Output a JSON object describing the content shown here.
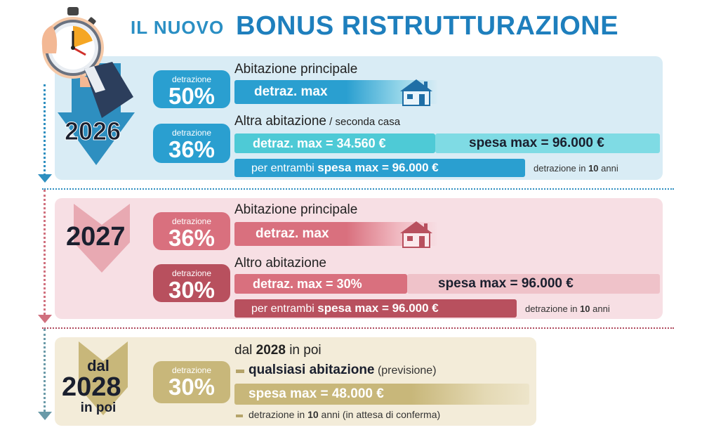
{
  "header": {
    "title_small": "IL NUOVO",
    "title_big": "BONUS RISTRUTTURAZIONE"
  },
  "colors": {
    "blue": "#2a9fd0",
    "teal": "#4ecad6",
    "pink": "#d9707e",
    "rose": "#b8505e",
    "gold": "#c8b77a",
    "title": "#1e7fbd"
  },
  "y2026": {
    "year": "2026",
    "main": {
      "badge_label": "detrazione",
      "badge_pct": "50%",
      "heading": "Abitazione principale",
      "bar": "detraz. max"
    },
    "second": {
      "badge_label": "detrazione",
      "badge_pct": "36%",
      "heading_a": "Altra abitazione",
      "heading_b": " / seconda casa",
      "bar": "detraz. max = 34.560 €",
      "spesa": "spesa max = 96.000 €"
    },
    "both": {
      "prefix": "per entrambi ",
      "bold": "spesa max = 96.000 €",
      "note_a": "detrazione in ",
      "note_num": "10",
      "note_b": " anni"
    }
  },
  "y2027": {
    "year": "2027",
    "main": {
      "badge_label": "detrazione",
      "badge_pct": "36%",
      "heading": "Abitazione principale",
      "bar": "detraz. max"
    },
    "second": {
      "badge_label": "detrazione",
      "badge_pct": "30%",
      "heading": "Altro abitazione",
      "bar": "detraz. max = 30%",
      "spesa": "spesa max = 96.000 €"
    },
    "both": {
      "prefix": "per entrambi ",
      "bold": "spesa max = 96.000 €",
      "note_a": "detrazione in ",
      "note_num": "10",
      "note_b": " anni"
    }
  },
  "y2028": {
    "year_top": "dal",
    "year": "2028",
    "year_bottom": "in poi",
    "badge_label": "detrazione",
    "badge_pct": "30%",
    "heading_a": "dal ",
    "heading_num": "2028",
    "heading_b": " in poi",
    "line1_bold": "qualsiasi abitazione",
    "line1_rest": " (previsione)",
    "bar": "spesa max = 48.000 €",
    "note_a": "detrazione in ",
    "note_num": "10",
    "note_b": " anni (in attesa di conferma)"
  },
  "icons": [
    "stopwatch-icon",
    "house-icon"
  ]
}
